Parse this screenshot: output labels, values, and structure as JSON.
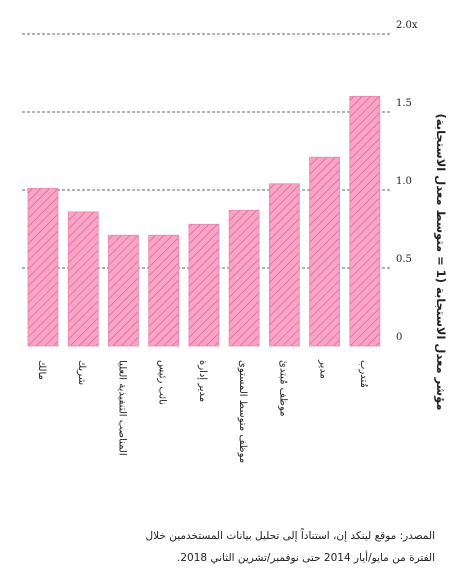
{
  "chart_data": {
    "type": "bar",
    "categories": [
      "مالك",
      "شريك",
      "المناصب التنفيذية العليا",
      "نائب رئيس",
      "مدير إدارة",
      "موظف متوسط المستوى",
      "موظف مُبتدئ",
      "مدير",
      "مُتدرب"
    ],
    "values": [
      1.01,
      0.86,
      0.71,
      0.71,
      0.78,
      0.87,
      1.04,
      1.21,
      1.6
    ],
    "ylabel": "مؤشر معدل الاستجابة (1 = متوسط معدل الاستجابة)",
    "ylim": [
      0,
      2.0
    ],
    "yticks": [
      0,
      0.5,
      1.0,
      1.5,
      2.0
    ],
    "ytick_labels": [
      "0",
      "0.5",
      "1.0",
      "1.5",
      "2.0x"
    ],
    "grid": "dashed-horizontal",
    "colors": {
      "bar_fill": "#f9a3c6",
      "bar_hatch": "#d2547f",
      "bar_edge": "#e58aae",
      "grid": "#333333"
    }
  },
  "source": {
    "line1": "المصدر: موقع لينكد إن، استناداً إلى تحليل بيانات المستخدمين خلال",
    "line2": "الفترة من مايو/أيار 2014 حتى نوفمبر/تشرين الثاني 2018."
  }
}
